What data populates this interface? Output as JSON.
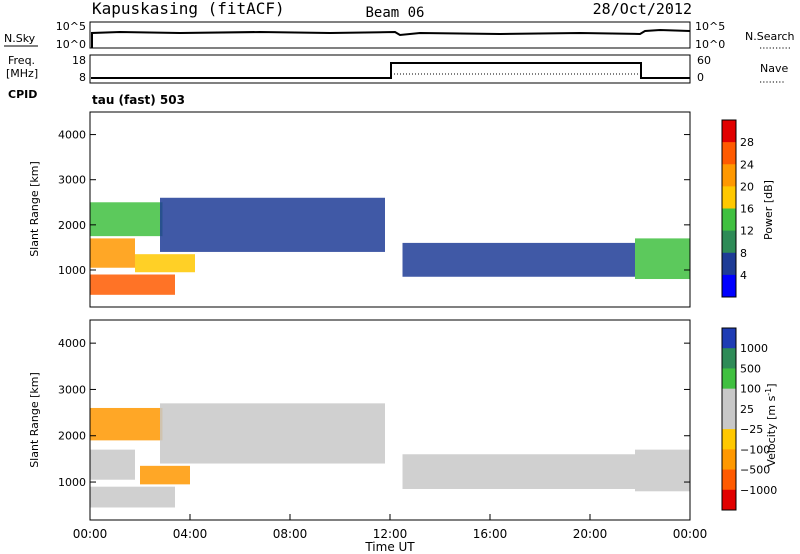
{
  "header": {
    "station": "Kapuskasing (fitACF)",
    "beam": "Beam 06",
    "date": "28/Oct/2012"
  },
  "nsky_panel": {
    "left_label": "N.Sky",
    "left_ticks": [
      "10^5",
      "10^0"
    ],
    "right_ticks": [
      "10^5",
      "10^0"
    ],
    "right_label": "N.Search",
    "right_label_style": "dotted"
  },
  "freq_panel": {
    "left_label_line1": "Freq.",
    "left_label_line2": "[MHz]",
    "left_ticks": [
      "18",
      "8"
    ],
    "right_ticks": [
      "60",
      "0"
    ],
    "right_label": "Nave",
    "right_label_style": "dotted",
    "cpid_label": "CPID",
    "cpid_value": "tau (fast) 503"
  },
  "chart_data": [
    {
      "type": "heatmap",
      "title": "",
      "quantity": "Power",
      "ylabel": "Slant Range [km]",
      "xlabel": "",
      "x_range_hours": [
        0,
        24
      ],
      "ylim": [
        180,
        4500
      ],
      "y_ticks": [
        1000,
        2000,
        3000,
        4000
      ],
      "colorbar": {
        "label": "Power [dB]",
        "ticks": [
          "28",
          "24",
          "20",
          "16",
          "12",
          "8",
          "4"
        ],
        "colors": [
          "#e10000",
          "#ff5a00",
          "#ff9800",
          "#ffc800",
          "#40c040",
          "#2e8b57",
          "#1e3c96",
          "#0000ff"
        ]
      },
      "regions": [
        {
          "t0": 0.0,
          "t1": 2.9,
          "r0": 1750,
          "r1": 2500,
          "color": "#40c040"
        },
        {
          "t0": 0.0,
          "t1": 1.8,
          "r0": 1050,
          "r1": 1700,
          "color": "#ff9800"
        },
        {
          "t0": 0.0,
          "t1": 3.4,
          "r0": 450,
          "r1": 900,
          "color": "#ff5a00"
        },
        {
          "t0": 1.8,
          "t1": 4.2,
          "r0": 950,
          "r1": 1350,
          "color": "#ffc800"
        },
        {
          "t0": 2.8,
          "t1": 11.8,
          "r0": 1400,
          "r1": 2600,
          "color": "#1e3c96"
        },
        {
          "t0": 12.5,
          "t1": 21.8,
          "r0": 850,
          "r1": 1600,
          "color": "#1e3c96"
        },
        {
          "t0": 21.8,
          "t1": 24.0,
          "r0": 800,
          "r1": 1700,
          "color": "#40c040"
        }
      ]
    },
    {
      "type": "heatmap",
      "title": "",
      "quantity": "Velocity",
      "ylabel": "Slant Range [km]",
      "xlabel": "Time UT",
      "x_range_hours": [
        0,
        24
      ],
      "ylim": [
        180,
        4500
      ],
      "y_ticks": [
        1000,
        2000,
        3000,
        4000
      ],
      "x_tick_labels": [
        "00:00",
        "04:00",
        "08:00",
        "12:00",
        "16:00",
        "20:00",
        "00:00"
      ],
      "colorbar": {
        "label": "Velocity [m s",
        "label_sup": "-1",
        "label_end": "]",
        "ticks": [
          "1000",
          "500",
          "100",
          "25",
          "−25",
          "−100",
          "−500",
          "−1000"
        ],
        "colors": [
          "#1e3cb4",
          "#2e8b57",
          "#40c040",
          "#c8c8c8",
          "#c8c8c8",
          "#ffc800",
          "#ff9800",
          "#ff5a00",
          "#e10000"
        ]
      },
      "regions": [
        {
          "t0": 0.0,
          "t1": 2.9,
          "r0": 1900,
          "r1": 2600,
          "color": "#ff9800"
        },
        {
          "t0": 0.0,
          "t1": 1.8,
          "r0": 1050,
          "r1": 1700,
          "color": "#c8c8c8"
        },
        {
          "t0": 0.0,
          "t1": 3.4,
          "r0": 450,
          "r1": 900,
          "color": "#c8c8c8"
        },
        {
          "t0": 2.0,
          "t1": 4.0,
          "r0": 950,
          "r1": 1350,
          "color": "#ff9800"
        },
        {
          "t0": 2.8,
          "t1": 11.8,
          "r0": 1400,
          "r1": 2700,
          "color": "#c8c8c8"
        },
        {
          "t0": 12.5,
          "t1": 21.8,
          "r0": 850,
          "r1": 1600,
          "color": "#c8c8c8"
        },
        {
          "t0": 21.8,
          "t1": 24.0,
          "r0": 800,
          "r1": 1700,
          "color": "#c8c8c8"
        }
      ]
    }
  ]
}
